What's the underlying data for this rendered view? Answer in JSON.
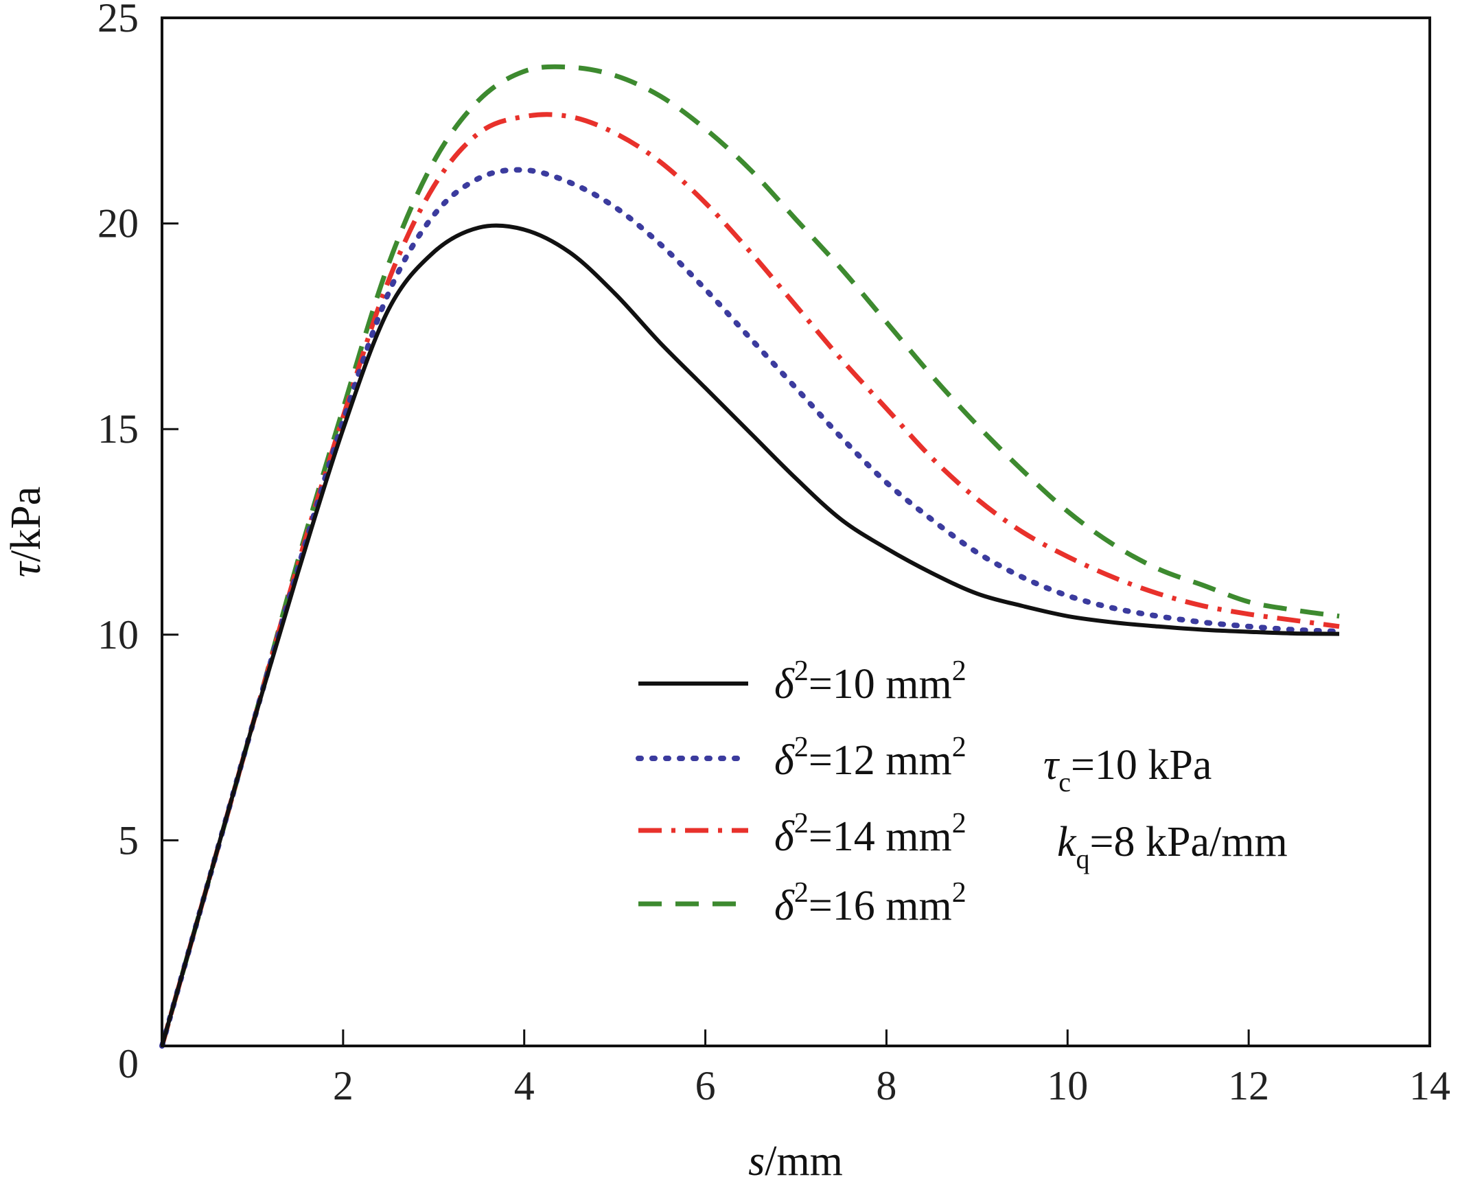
{
  "chart_data": {
    "type": "line",
    "title": "",
    "xlabel": {
      "var": "s",
      "unit": "/mm"
    },
    "ylabel": {
      "var": "τ",
      "unit": "/kPa"
    },
    "xlim": [
      0,
      14
    ],
    "ylim": [
      0,
      25
    ],
    "x_ticks": [
      2,
      4,
      6,
      8,
      10,
      12,
      14
    ],
    "x_tick_labels": [
      "2",
      "4",
      "6",
      "8",
      "10",
      "12",
      "14"
    ],
    "y_ticks": [
      5,
      10,
      15,
      20,
      25
    ],
    "y_tick_labels": [
      "5",
      "10",
      "15",
      "20",
      "25"
    ],
    "origin_label": "0",
    "grid": false,
    "legend_position": "center-right",
    "x": [
      0,
      0.5,
      1,
      1.5,
      2,
      2.5,
      3,
      3.5,
      4,
      4.5,
      5,
      5.5,
      6,
      6.5,
      7,
      7.5,
      8,
      8.5,
      9,
      9.5,
      10,
      10.5,
      11,
      11.5,
      12,
      12.5,
      13
    ],
    "series": [
      {
        "name": "δ²=10 mm²",
        "legend": {
          "var": "δ",
          "sup": "2",
          "rest": "=10 mm",
          "unit_sup": "2"
        },
        "color": "#111111",
        "style": "solid",
        "values": [
          0,
          3.9,
          7.8,
          11.5,
          15.0,
          17.9,
          19.3,
          19.9,
          19.85,
          19.3,
          18.3,
          17.1,
          16.0,
          14.9,
          13.8,
          12.8,
          12.1,
          11.5,
          11.0,
          10.7,
          10.45,
          10.3,
          10.2,
          10.12,
          10.07,
          10.03,
          10.02
        ]
      },
      {
        "name": "δ²=12 mm²",
        "legend": {
          "var": "δ",
          "sup": "2",
          "rest": "=12 mm",
          "unit_sup": "2"
        },
        "color": "#3b3b9e",
        "style": "dotted",
        "values": [
          0,
          3.9,
          7.8,
          11.6,
          15.2,
          18.3,
          20.2,
          21.1,
          21.3,
          21.0,
          20.4,
          19.5,
          18.4,
          17.2,
          16.0,
          14.8,
          13.7,
          12.8,
          12.0,
          11.4,
          10.95,
          10.65,
          10.45,
          10.3,
          10.2,
          10.12,
          10.08
        ]
      },
      {
        "name": "δ²=14 mm²",
        "legend": {
          "var": "δ",
          "sup": "2",
          "rest": "=14 mm",
          "unit_sup": "2"
        },
        "color": "#e8312b",
        "style": "dash-dot",
        "values": [
          0,
          3.9,
          7.8,
          11.7,
          15.3,
          18.6,
          20.9,
          22.2,
          22.6,
          22.6,
          22.2,
          21.5,
          20.5,
          19.3,
          18.0,
          16.7,
          15.5,
          14.3,
          13.3,
          12.5,
          11.9,
          11.4,
          11.0,
          10.7,
          10.5,
          10.35,
          10.2
        ]
      },
      {
        "name": "δ²=16 mm²",
        "legend": {
          "var": "δ",
          "sup": "2",
          "rest": "=16 mm",
          "unit_sup": "2"
        },
        "color": "#3d8a2f",
        "style": "dashed",
        "values": [
          0,
          3.9,
          7.8,
          11.8,
          15.5,
          19.0,
          21.5,
          23.0,
          23.7,
          23.8,
          23.6,
          23.1,
          22.3,
          21.3,
          20.1,
          18.9,
          17.6,
          16.3,
          15.1,
          14.0,
          13.0,
          12.2,
          11.6,
          11.2,
          10.8,
          10.6,
          10.45
        ]
      }
    ],
    "annotations": [
      {
        "var": "τ",
        "sub": "c",
        "rest": "=10 kPa"
      },
      {
        "var": "k",
        "sub": "q",
        "rest": "=8 kPa/mm"
      }
    ]
  }
}
